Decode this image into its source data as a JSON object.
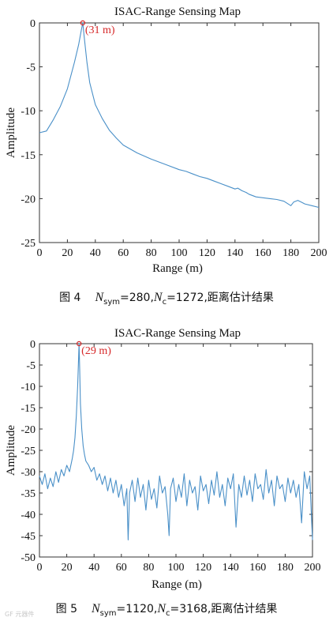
{
  "charts": [
    {
      "svg_id": "fig4",
      "caption": {
        "fig": "图 4",
        "nsym_label": "N",
        "nsym_sub": "sym",
        "nsym_value": "=280,",
        "nc_label": "N",
        "nc_sub": "c",
        "nc_value": "=1272,",
        "desc": "距离估计结果"
      }
    },
    {
      "svg_id": "fig5",
      "caption": {
        "fig": "图 5",
        "nsym_label": "N",
        "nsym_sub": "sym",
        "nsym_value": "=1120,",
        "nc_label": "N",
        "nc_sub": "c",
        "nc_value": "=3168,",
        "desc": "距离估计结果"
      }
    }
  ],
  "watermark": "GF 元器件",
  "chart_data": [
    {
      "type": "line",
      "title": "ISAC-Range Sensing Map",
      "xlabel": "Range (m)",
      "ylabel": "Amplitude",
      "xlim": [
        0,
        200
      ],
      "ylim": [
        -25,
        0
      ],
      "xticks": [
        0,
        20,
        40,
        60,
        80,
        100,
        120,
        140,
        160,
        180,
        200
      ],
      "yticks": [
        0,
        -5,
        -10,
        -15,
        -20,
        -25
      ],
      "grid": false,
      "line_color": "#4a90c8",
      "annotation": {
        "x": 31,
        "y": 0,
        "label": "(31 m)",
        "color": "#d62728"
      },
      "series": [
        {
          "x": [
            0,
            5,
            10,
            15,
            20,
            25,
            28,
            30,
            31,
            32,
            34,
            36,
            40,
            45,
            50,
            55,
            60,
            70,
            80,
            90,
            100,
            105,
            110,
            115,
            120,
            125,
            130,
            135,
            140,
            142,
            145,
            148,
            150,
            155,
            160,
            165,
            170,
            175,
            180,
            182,
            185,
            190,
            195,
            200
          ],
          "y": [
            -12.5,
            -12.3,
            -11,
            -9.5,
            -7.5,
            -4.5,
            -2.5,
            -0.8,
            0,
            -1.5,
            -4.5,
            -6.8,
            -9.3,
            -10.9,
            -12.2,
            -13.1,
            -13.9,
            -14.8,
            -15.5,
            -16.1,
            -16.7,
            -16.9,
            -17.2,
            -17.5,
            -17.7,
            -18,
            -18.3,
            -18.6,
            -18.9,
            -18.8,
            -19.1,
            -19.3,
            -19.5,
            -19.8,
            -19.9,
            -20,
            -20.1,
            -20.3,
            -20.8,
            -20.4,
            -20.2,
            -20.6,
            -20.8,
            -21
          ]
        }
      ]
    },
    {
      "type": "line",
      "title": "ISAC-Range Sensing Map",
      "xlabel": "Range (m)",
      "ylabel": "Amplitude",
      "xlim": [
        0,
        200
      ],
      "ylim": [
        -50,
        0
      ],
      "xticks": [
        0,
        20,
        40,
        60,
        80,
        100,
        120,
        140,
        160,
        180,
        200
      ],
      "yticks": [
        0,
        -5,
        -10,
        -15,
        -20,
        -25,
        -30,
        -35,
        -40,
        -45,
        -50
      ],
      "grid": false,
      "line_color": "#4a90c8",
      "annotation": {
        "x": 29,
        "y": 0,
        "label": "(29 m)",
        "color": "#d62728"
      },
      "series": [
        {
          "x": [
            0,
            2,
            4,
            6,
            8,
            10,
            12,
            14,
            16,
            18,
            20,
            22,
            24,
            25,
            26,
            27,
            28,
            28.5,
            29,
            29.5,
            30,
            31,
            32,
            33,
            34,
            36,
            38,
            40,
            42,
            44,
            46,
            48,
            50,
            52,
            54,
            56,
            58,
            60,
            62,
            64,
            65,
            66,
            68,
            70,
            72,
            74,
            76,
            78,
            80,
            82,
            84,
            86,
            88,
            90,
            92,
            94,
            95,
            96,
            98,
            100,
            102,
            104,
            106,
            108,
            110,
            112,
            114,
            116,
            118,
            120,
            122,
            124,
            126,
            128,
            130,
            132,
            134,
            136,
            138,
            140,
            142,
            144,
            146,
            148,
            150,
            152,
            154,
            156,
            158,
            160,
            162,
            164,
            166,
            168,
            170,
            172,
            174,
            176,
            178,
            180,
            182,
            184,
            186,
            188,
            190,
            192,
            194,
            196,
            198,
            200
          ],
          "y": [
            -31,
            -33,
            -30.5,
            -34,
            -31.5,
            -33.5,
            -30,
            -32.5,
            -29.5,
            -31,
            -28.5,
            -30,
            -27,
            -25,
            -22,
            -17,
            -10,
            -5,
            0,
            -6,
            -14,
            -20,
            -24,
            -26,
            -27.5,
            -28.5,
            -30,
            -29,
            -32,
            -30.5,
            -33,
            -31,
            -34.5,
            -31.5,
            -35,
            -32,
            -36,
            -33,
            -38,
            -34,
            -46,
            -35,
            -32,
            -37,
            -31.5,
            -36,
            -33,
            -39,
            -32,
            -36.5,
            -34,
            -38.5,
            -31,
            -35,
            -33.5,
            -40,
            -45,
            -34,
            -31.5,
            -37,
            -33,
            -36,
            -30.5,
            -38,
            -32,
            -35,
            -33.5,
            -39,
            -31,
            -34.5,
            -33,
            -37.5,
            -32,
            -35.5,
            -30,
            -36,
            -33,
            -38,
            -31.5,
            -34,
            -30.5,
            -43,
            -33,
            -36,
            -31,
            -35.5,
            -32,
            -37,
            -30.5,
            -34,
            -33,
            -36.5,
            -29.5,
            -35,
            -32,
            -38,
            -31,
            -34,
            -33,
            -37,
            -31.5,
            -35,
            -32,
            -36,
            -33,
            -42,
            -30,
            -34,
            -31,
            -46
          ]
        }
      ]
    }
  ]
}
